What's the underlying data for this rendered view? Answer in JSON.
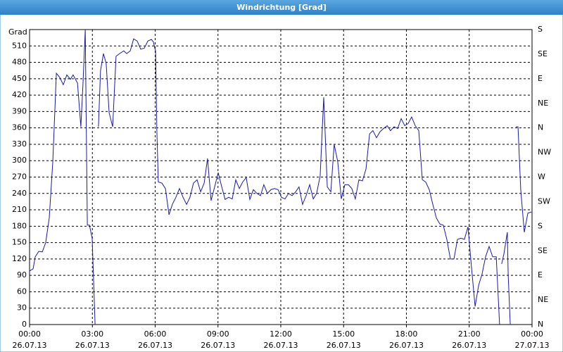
{
  "chart_data": {
    "type": "line",
    "title": "Windrichtung [Grad]",
    "y_label": "Grad",
    "xlim": [
      0,
      24
    ],
    "ylim": [
      0,
      540
    ],
    "y2lim": [
      0,
      540
    ],
    "grid": true,
    "xticks": [
      {
        "value": 0,
        "label": "00:00",
        "date": "26.07.13"
      },
      {
        "value": 3,
        "label": "03:00",
        "date": "26.07.13"
      },
      {
        "value": 6,
        "label": "06:00",
        "date": "26.07.13"
      },
      {
        "value": 9,
        "label": "09:00",
        "date": "26.07.13"
      },
      {
        "value": 12,
        "label": "12:00",
        "date": "26.07.13"
      },
      {
        "value": 15,
        "label": "15:00",
        "date": "26.07.13"
      },
      {
        "value": 18,
        "label": "18:00",
        "date": "26.07.13"
      },
      {
        "value": 21,
        "label": "21:00",
        "date": "26.07.13"
      },
      {
        "value": 24,
        "label": "00:00",
        "date": "27.07.13"
      }
    ],
    "yticks": [
      0,
      30,
      60,
      90,
      120,
      150,
      180,
      210,
      240,
      270,
      300,
      330,
      360,
      390,
      420,
      450,
      480,
      510
    ],
    "y2ticks": [
      {
        "value": 540,
        "label": "S"
      },
      {
        "value": 495,
        "label": "SE"
      },
      {
        "value": 450,
        "label": "E"
      },
      {
        "value": 405,
        "label": "NE"
      },
      {
        "value": 360,
        "label": "N"
      },
      {
        "value": 315,
        "label": "NW"
      },
      {
        "value": 270,
        "label": "W"
      },
      {
        "value": 225,
        "label": "SW"
      },
      {
        "value": 180,
        "label": "S"
      },
      {
        "value": 135,
        "label": "SE"
      },
      {
        "value": 90,
        "label": "E"
      },
      {
        "value": 45,
        "label": "NE"
      },
      {
        "value": 0,
        "label": "N"
      }
    ],
    "x": [
      0,
      0.17,
      0.27,
      0.44,
      0.61,
      0.77,
      0.94,
      1.11,
      1.28,
      1.45,
      1.61,
      1.78,
      1.95,
      2.08,
      2.29,
      2.45,
      2.55,
      2.66,
      2.76,
      2.86,
      2.99,
      3.13,
      3.2,
      3.29,
      3.39,
      3.53,
      3.66,
      3.8,
      3.97,
      4.13,
      4.3,
      4.5,
      4.64,
      4.81,
      4.97,
      5.14,
      5.31,
      5.48,
      5.65,
      5.82,
      5.92,
      5.98,
      6.02,
      6.08,
      6.15,
      6.32,
      6.49,
      6.66,
      6.82,
      6.99,
      7.16,
      7.33,
      7.5,
      7.66,
      7.83,
      8.0,
      8.17,
      8.34,
      8.5,
      8.67,
      8.84,
      9.01,
      9.18,
      9.34,
      9.51,
      9.68,
      9.85,
      10.02,
      10.18,
      10.35,
      10.52,
      10.69,
      10.86,
      11.03,
      11.19,
      11.36,
      11.53,
      11.7,
      11.87,
      12.03,
      12.2,
      12.37,
      12.54,
      12.71,
      12.87,
      13.04,
      13.21,
      13.38,
      13.55,
      13.71,
      13.88,
      14.05,
      14.22,
      14.39,
      14.55,
      14.72,
      14.89,
      15.06,
      15.23,
      15.39,
      15.56,
      15.73,
      15.9,
      16.07,
      16.24,
      16.4,
      16.57,
      16.74,
      16.91,
      17.08,
      17.24,
      17.41,
      17.58,
      17.75,
      17.92,
      18.08,
      18.25,
      18.42,
      18.59,
      18.76,
      18.92,
      19.09,
      19.26,
      19.43,
      19.6,
      19.76,
      19.93,
      20.1,
      20.27,
      20.44,
      20.61,
      20.77,
      20.94,
      21.11,
      21.28,
      21.45,
      21.61,
      21.78,
      21.95,
      22.12,
      22.29,
      22.45,
      22.52,
      22.55,
      22.66,
      22.82,
      22.86,
      22.96,
      23.1,
      23.23,
      23.33,
      23.46,
      23.63,
      23.8,
      23.97
    ],
    "series": [
      {
        "name": "Windrichtung",
        "color": "#1a1aa6",
        "values": [
          98,
          102,
          124,
          134,
          133,
          150,
          195,
          298,
          460,
          452,
          439,
          457,
          449,
          457,
          442,
          362,
          439,
          540,
          182,
          182,
          158,
          0,
          null,
          362,
          465,
          496,
          478,
          388,
          362,
          491,
          496,
          501,
          496,
          501,
          523,
          519,
          504,
          506,
          519,
          522,
          517,
          506,
          501,
          355,
          261,
          259,
          249,
          201,
          220,
          233,
          249,
          233,
          220,
          233,
          259,
          265,
          243,
          259,
          304,
          227,
          252,
          278,
          252,
          229,
          233,
          230,
          265,
          249,
          261,
          269,
          229,
          247,
          240,
          236,
          256,
          240,
          247,
          249,
          247,
          233,
          230,
          240,
          236,
          243,
          252,
          220,
          236,
          256,
          230,
          240,
          272,
          416,
          252,
          243,
          330,
          298,
          230,
          256,
          256,
          249,
          230,
          265,
          263,
          285,
          349,
          355,
          342,
          353,
          359,
          364,
          355,
          362,
          359,
          377,
          364,
          368,
          380,
          364,
          355,
          265,
          261,
          247,
          220,
          195,
          184,
          182,
          156,
          120,
          120,
          156,
          158,
          156,
          179,
          104,
          33,
          72,
          92,
          124,
          143,
          124,
          124,
          0,
          null,
          111,
          130,
          169,
          92,
          0,
          null,
          362,
          362,
          247,
          169,
          204,
          206
        ]
      }
    ]
  }
}
